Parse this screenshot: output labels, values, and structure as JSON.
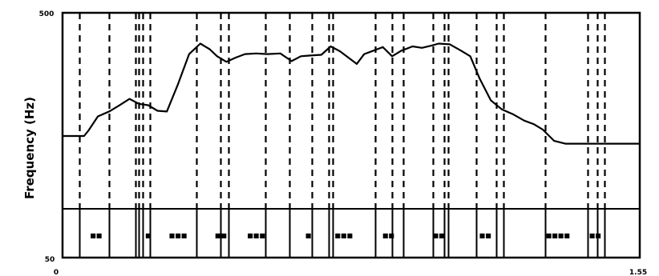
{
  "chart_data": {
    "type": "line",
    "title": "",
    "xlabel": "",
    "ylabel": "Frequency (Hz)",
    "y_tick_labels": [
      "500",
      "50"
    ],
    "x_tick_labels": [
      "0",
      "1.55"
    ],
    "xlim": [
      0,
      1.55
    ],
    "ylim": [
      50,
      500
    ],
    "grid": false,
    "series": [
      {
        "x": [
          0.0,
          0.058,
          0.07,
          0.095,
          0.125,
          0.15,
          0.18,
          0.205,
          0.23,
          0.255,
          0.28,
          0.31,
          0.34,
          0.37,
          0.395,
          0.415,
          0.44,
          0.465,
          0.49,
          0.52,
          0.55,
          0.585,
          0.615,
          0.64,
          0.665,
          0.695,
          0.72,
          0.745,
          0.77,
          0.79,
          0.81,
          0.835,
          0.86,
          0.885,
          0.91,
          0.94,
          0.965,
          0.99,
          1.01,
          1.04,
          1.07,
          1.095,
          1.12,
          1.15,
          1.18,
          1.21,
          1.24,
          1.265,
          1.29,
          1.32,
          1.35,
          1.38,
          1.41,
          1.44,
          1.465,
          1.485,
          1.5,
          1.55
        ],
        "y": [
          224,
          224,
          232,
          252,
          259,
          267,
          277,
          270,
          268,
          260,
          259,
          298,
          341,
          356,
          348,
          338,
          330,
          336,
          341,
          342,
          341,
          342,
          331,
          338,
          339,
          340,
          352,
          345,
          335,
          327,
          341,
          346,
          351,
          338,
          346,
          352,
          350,
          353,
          356,
          355,
          346,
          338,
          306,
          275,
          262,
          255,
          246,
          241,
          233,
          217,
          213,
          213,
          213,
          213,
          213,
          213,
          213,
          213
        ]
      }
    ],
    "boundaries": [
      0.045,
      0.125,
      0.195,
      0.205,
      0.215,
      0.235,
      0.36,
      0.425,
      0.445,
      0.545,
      0.61,
      0.67,
      0.715,
      0.725,
      0.84,
      0.885,
      0.915,
      0.995,
      1.025,
      1.035,
      1.11,
      1.165,
      1.185,
      1.295,
      1.41,
      1.435,
      1.455
    ],
    "segment_labels": [
      {
        "x": 0.09,
        "text": "■■"
      },
      {
        "x": 0.23,
        "text": "■"
      },
      {
        "x": 0.31,
        "text": "■■■"
      },
      {
        "x": 0.425,
        "text": "■■"
      },
      {
        "x": 0.52,
        "text": "■■■"
      },
      {
        "x": 0.66,
        "text": "■"
      },
      {
        "x": 0.755,
        "text": "■■■"
      },
      {
        "x": 0.875,
        "text": "■■"
      },
      {
        "x": 1.01,
        "text": "■■"
      },
      {
        "x": 1.135,
        "text": "■■"
      },
      {
        "x": 1.33,
        "text": "■■■■"
      },
      {
        "x": 1.43,
        "text": "■■"
      }
    ]
  }
}
